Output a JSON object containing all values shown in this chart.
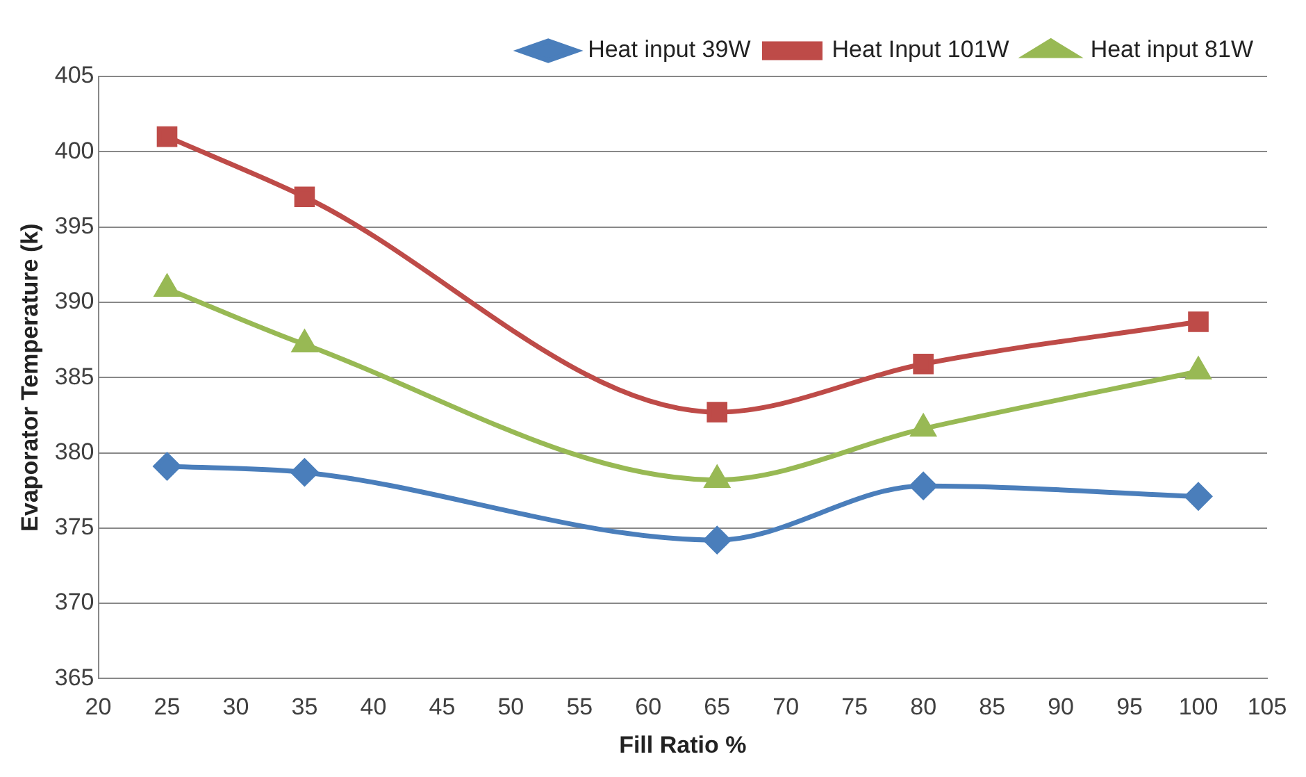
{
  "chart_data": {
    "type": "line",
    "xlabel": "Fill Ratio %",
    "ylabel": "Evaporator Temperature (k)",
    "x": [
      25,
      35,
      65,
      80,
      100
    ],
    "series": [
      {
        "name": "Heat input 39W",
        "color": "#4a7ebb",
        "marker": "diamond",
        "values": [
          379.1,
          378.7,
          374.2,
          377.8,
          377.1
        ]
      },
      {
        "name": "Heat Input 101W",
        "color": "#be4b48",
        "marker": "square",
        "values": [
          401.0,
          397.0,
          382.7,
          385.9,
          388.7
        ]
      },
      {
        "name": "Heat input 81W",
        "color": "#98b954",
        "marker": "triangle",
        "values": [
          390.9,
          387.2,
          378.2,
          381.6,
          385.4
        ]
      }
    ],
    "xlim": [
      20,
      105
    ],
    "xticks": [
      20,
      25,
      30,
      35,
      40,
      45,
      50,
      55,
      60,
      65,
      70,
      75,
      80,
      85,
      90,
      95,
      100,
      105
    ],
    "ylim": [
      365,
      405
    ],
    "yticks": [
      365,
      370,
      375,
      380,
      385,
      390,
      395,
      400,
      405
    ],
    "grid": "y",
    "legend": "top right",
    "line_style": "solid"
  }
}
